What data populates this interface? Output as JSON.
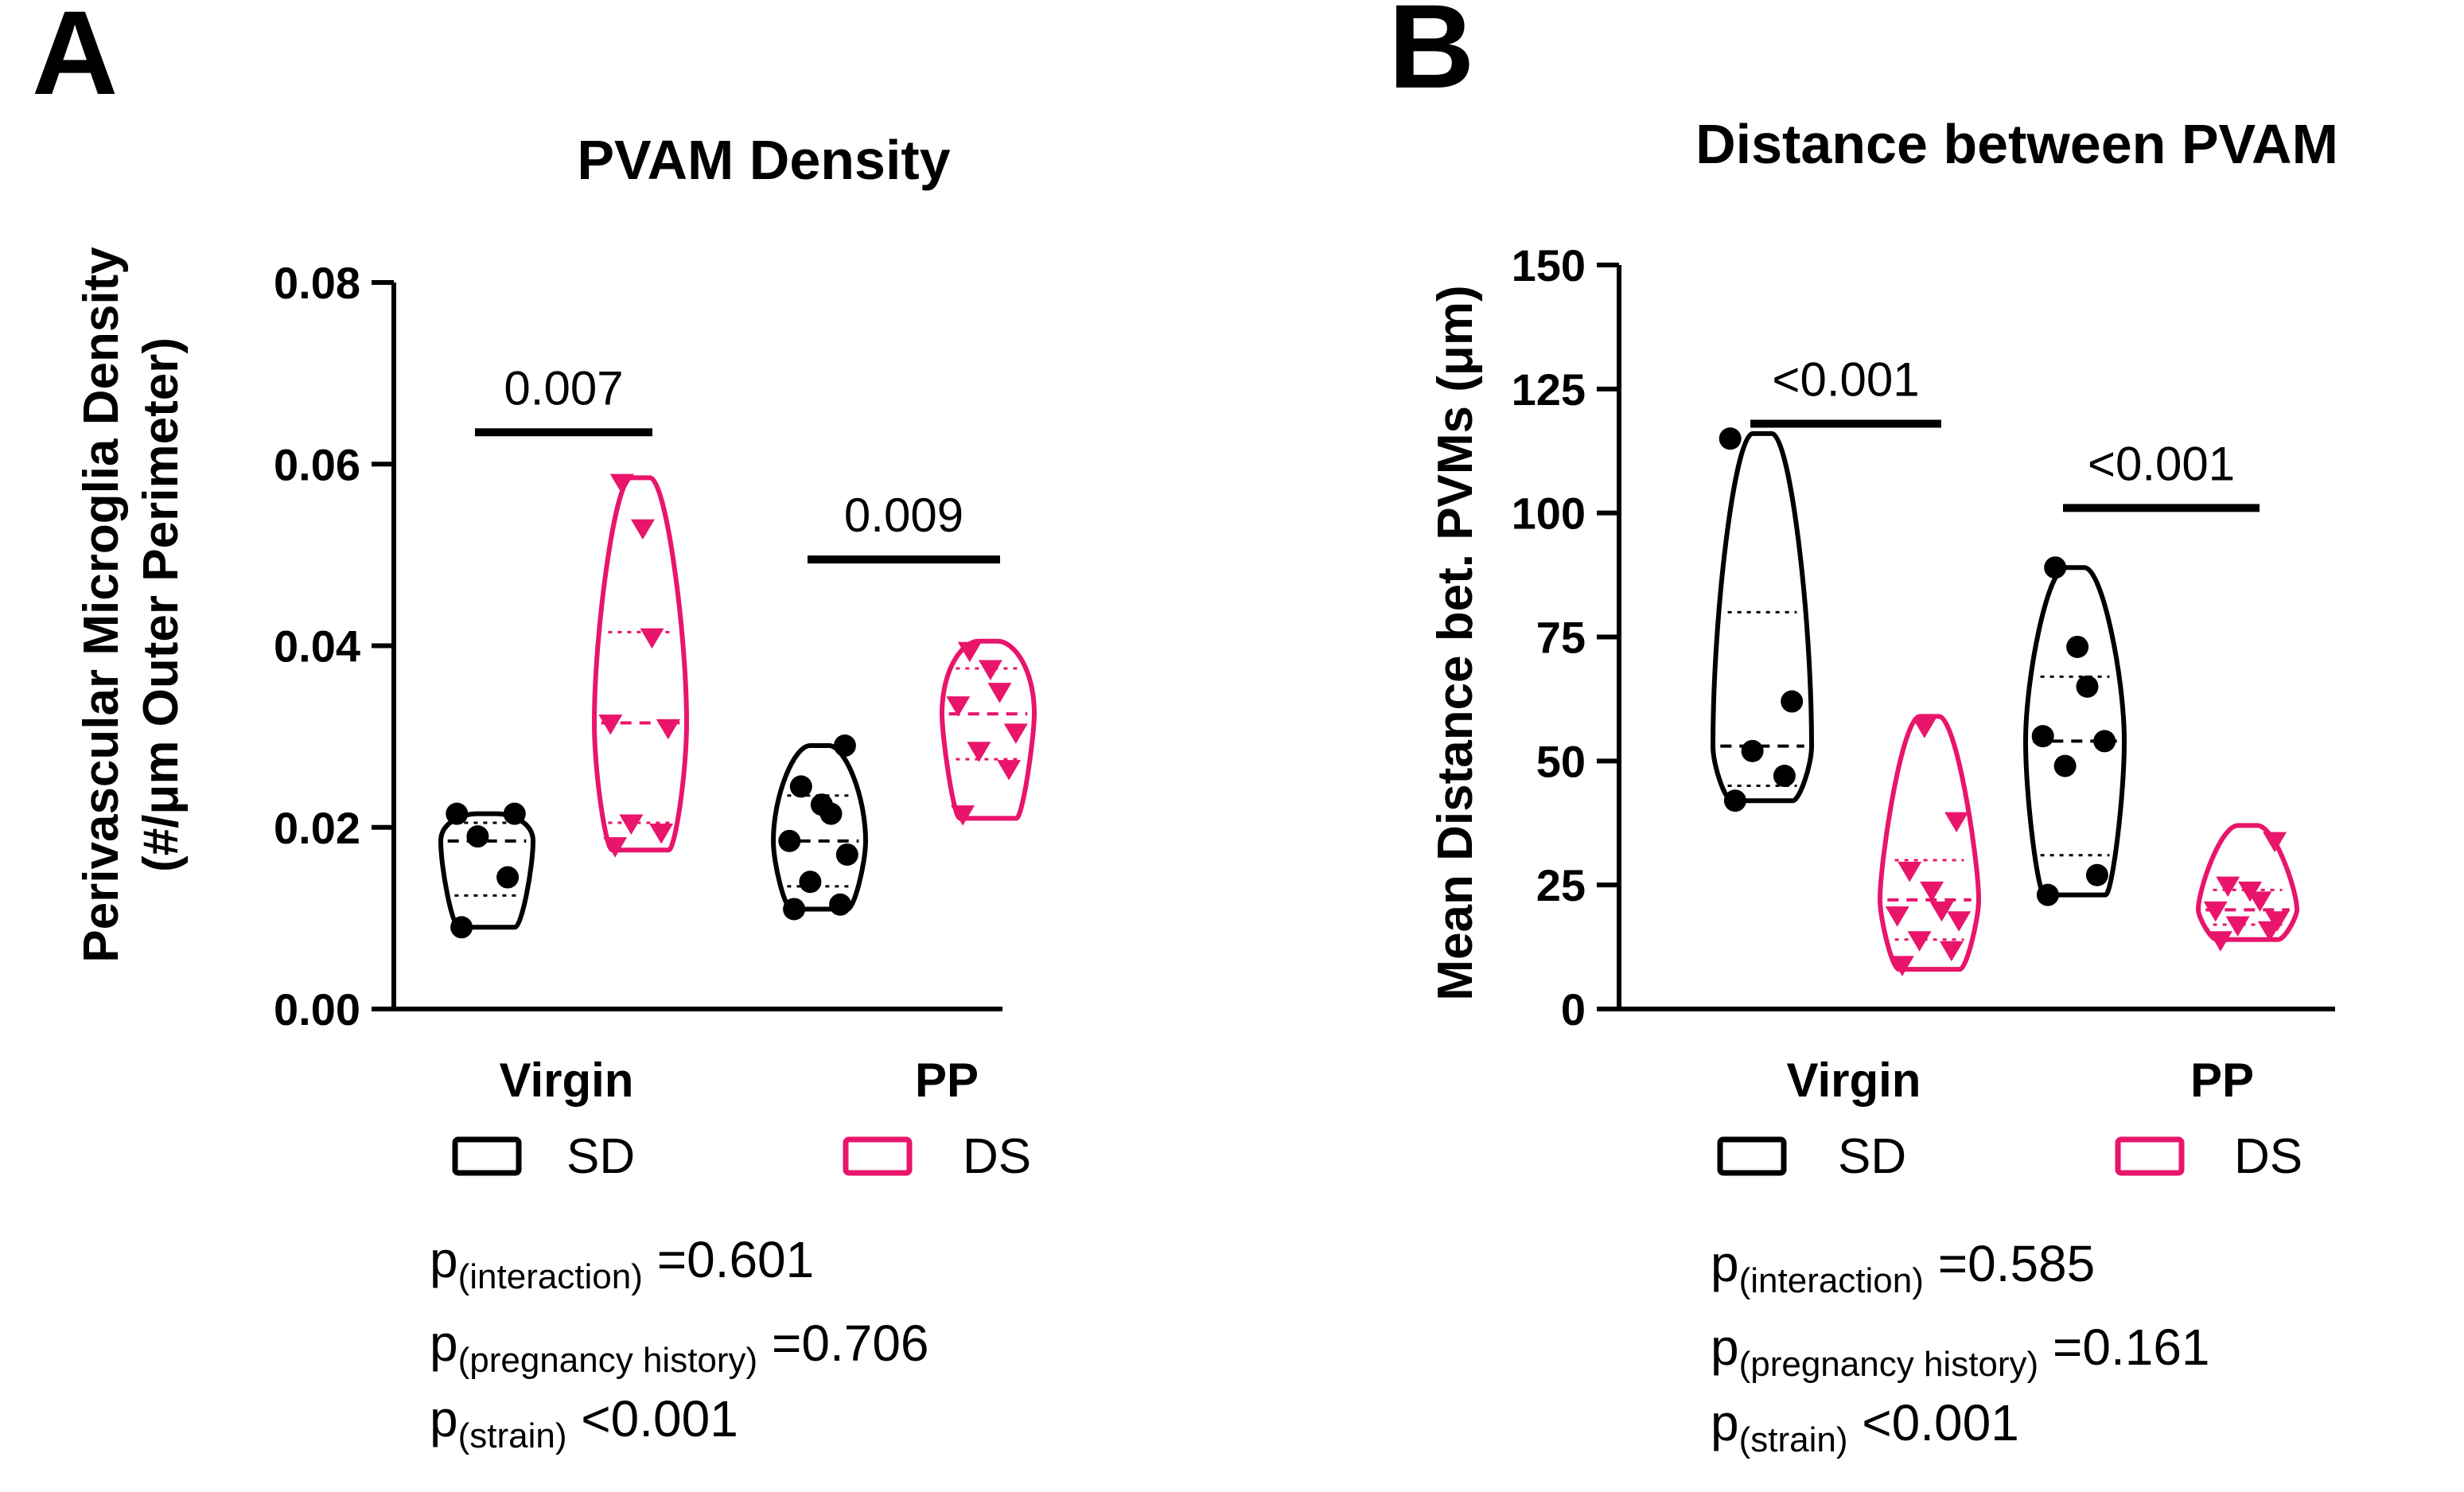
{
  "colors": {
    "SD": "#000000",
    "DS": "#e8156b"
  },
  "chart_data": [
    {
      "type": "violin",
      "panel_label": "A",
      "title": "PVAM Density",
      "ylabel_line1": "Perivascular Microglia Density",
      "ylabel_line2": "(#/μm Outer Perimeter)",
      "ylim": [
        0,
        0.08
      ],
      "yticks": [
        0.0,
        0.02,
        0.04,
        0.06,
        0.08
      ],
      "ytick_labels": [
        "0.00",
        "0.02",
        "0.04",
        "0.06",
        "0.08"
      ],
      "categories": [
        "Virgin",
        "PP"
      ],
      "legend": [
        {
          "key": "SD",
          "label": "SD"
        },
        {
          "key": "DS",
          "label": "DS"
        }
      ],
      "series": [
        {
          "name": "SD",
          "color": "#000000",
          "marker": "circle",
          "groups": [
            {
              "category": "Virgin",
              "values": [
                0.009,
                0.0145,
                0.019,
                0.0215,
                0.0215
              ],
              "min": 0.009,
              "max": 0.0215,
              "median": 0.0185,
              "q1": 0.0125,
              "q3": 0.0205
            },
            {
              "category": "PP",
              "values": [
                0.011,
                0.0115,
                0.014,
                0.017,
                0.0185,
                0.0215,
                0.0225,
                0.0245,
                0.029
              ],
              "min": 0.011,
              "max": 0.029,
              "median": 0.0185,
              "q1": 0.0135,
              "q3": 0.0235
            }
          ]
        },
        {
          "name": "DS",
          "color": "#e8156b",
          "marker": "triangle",
          "groups": [
            {
              "category": "Virgin",
              "values": [
                0.018,
                0.0195,
                0.0205,
                0.031,
                0.0315,
                0.041,
                0.053,
                0.058
              ],
              "min": 0.0175,
              "max": 0.0585,
              "median": 0.0315,
              "q1": 0.0205,
              "q3": 0.0415
            },
            {
              "category": "PP",
              "values": [
                0.0215,
                0.0265,
                0.0285,
                0.0305,
                0.0335,
                0.035,
                0.0375,
                0.0395
              ],
              "min": 0.021,
              "max": 0.0405,
              "median": 0.0325,
              "q1": 0.0275,
              "q3": 0.0375
            }
          ]
        }
      ],
      "annotations": [
        {
          "category": "Virgin",
          "text": "0.007",
          "y": 0.0635
        },
        {
          "category": "PP",
          "text": "0.009",
          "y": 0.0495
        }
      ],
      "stats": [
        {
          "p": "p",
          "sub": "(interaction)",
          "rest": " =0.601"
        },
        {
          "p": "p",
          "sub": "(pregnancy history)",
          "rest": " =0.706"
        },
        {
          "p": "p",
          "sub": "(strain)",
          "rest": " <0.001"
        }
      ]
    },
    {
      "type": "violin",
      "panel_label": "B",
      "title": "Distance between PVAM",
      "ylabel_line1": "Mean Distance bet. PVMs (μm)",
      "ylim": [
        0,
        150
      ],
      "yticks": [
        0,
        25,
        50,
        75,
        100,
        125,
        150
      ],
      "ytick_labels": [
        "0",
        "25",
        "50",
        "75",
        "100",
        "125",
        "150"
      ],
      "categories": [
        "Virgin",
        "PP"
      ],
      "legend": [
        {
          "key": "SD",
          "label": "SD"
        },
        {
          "key": "DS",
          "label": "DS"
        }
      ],
      "series": [
        {
          "name": "SD",
          "color": "#000000",
          "marker": "circle",
          "groups": [
            {
              "category": "Virgin",
              "values": [
                42,
                47,
                52,
                62,
                115
              ],
              "min": 42,
              "max": 116,
              "median": 53,
              "q1": 45,
              "q3": 80
            },
            {
              "category": "PP",
              "values": [
                23,
                27,
                49,
                54,
                55,
                65,
                73,
                89
              ],
              "min": 23,
              "max": 89,
              "median": 54,
              "q1": 31,
              "q3": 67
            }
          ]
        },
        {
          "name": "DS",
          "color": "#e8156b",
          "marker": "triangle",
          "groups": [
            {
              "category": "Virgin",
              "values": [
                9,
                12,
                14,
                18,
                19,
                20,
                24,
                28,
                38,
                57
              ],
              "min": 8,
              "max": 59,
              "median": 22,
              "q1": 14,
              "q3": 30
            },
            {
              "category": "PP",
              "values": [
                14,
                16,
                17,
                18,
                20,
                22,
                24,
                25,
                34
              ],
              "min": 14,
              "max": 37,
              "median": 20,
              "q1": 17,
              "q3": 24
            }
          ]
        }
      ],
      "annotations": [
        {
          "category": "Virgin",
          "text": "<0.001",
          "y": 118
        },
        {
          "category": "PP",
          "text": "<0.001",
          "y": 101
        }
      ],
      "stats": [
        {
          "p": "p",
          "sub": "(interaction)",
          "rest": " =0.585"
        },
        {
          "p": "p",
          "sub": "(pregnancy history)",
          "rest": " =0.161"
        },
        {
          "p": "p",
          "sub": "(strain)",
          "rest": " <0.001"
        }
      ]
    }
  ]
}
